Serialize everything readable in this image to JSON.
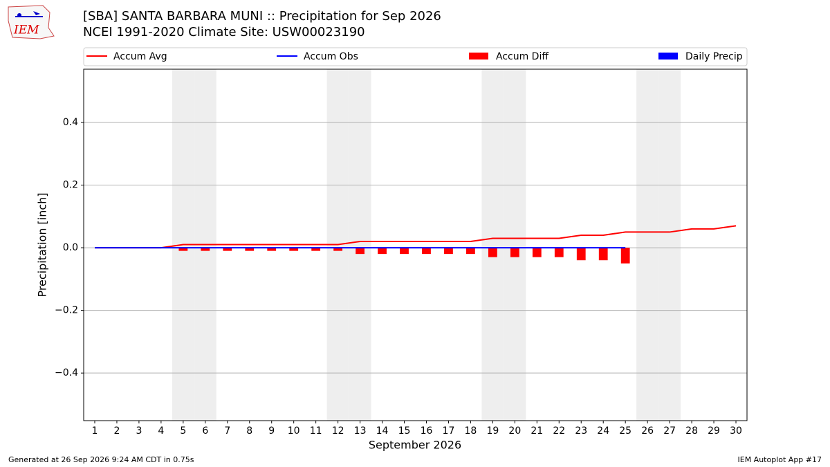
{
  "logo_text": "IEM",
  "footer_left": "Generated at 26 Sep 2026 9:24 AM CDT in 0.75s",
  "footer_right": "IEM Autoplot App #17",
  "chart_data": {
    "type": "line",
    "title": "[SBA] SANTA BARBARA MUNI :: Precipitation for Sep 2026",
    "subtitle": "NCEI 1991-2020 Climate Site: USW00023190",
    "x_label": "September 2026",
    "y_label": "Precipitation [inch]",
    "x": [
      1,
      2,
      3,
      4,
      5,
      6,
      7,
      8,
      9,
      10,
      11,
      12,
      13,
      14,
      15,
      16,
      17,
      18,
      19,
      20,
      21,
      22,
      23,
      24,
      25,
      26,
      27,
      28,
      29,
      30
    ],
    "xlim": [
      0.5,
      30.5
    ],
    "xticks": [
      1,
      2,
      3,
      4,
      5,
      6,
      7,
      8,
      9,
      10,
      11,
      12,
      13,
      14,
      15,
      16,
      17,
      18,
      19,
      20,
      21,
      22,
      23,
      24,
      25,
      26,
      27,
      28,
      29,
      30
    ],
    "ylim": [
      -0.552,
      0.57
    ],
    "yticks": [
      {
        "value": -0.4,
        "label": "−0.4"
      },
      {
        "value": -0.2,
        "label": "−0.2"
      },
      {
        "value": 0,
        "label": "0.0"
      },
      0.2,
      0.4
    ],
    "grid": true,
    "shaded_days": [
      5,
      6,
      12,
      13,
      19,
      20,
      26,
      27
    ],
    "series": [
      {
        "name": "Accum Avg",
        "kind": "line",
        "color": "#ff0000",
        "values": [
          0,
          0,
          0,
          0,
          0.01,
          0.01,
          0.01,
          0.01,
          0.01,
          0.01,
          0.01,
          0.01,
          0.02,
          0.02,
          0.02,
          0.02,
          0.02,
          0.02,
          0.03,
          0.03,
          0.03,
          0.03,
          0.04,
          0.04,
          0.05,
          0.05,
          0.05,
          0.06,
          0.06,
          0.07
        ]
      },
      {
        "name": "Accum Obs",
        "kind": "line",
        "color": "#0000ff",
        "values": [
          0,
          0,
          0,
          0,
          0,
          0,
          0,
          0,
          0,
          0,
          0,
          0,
          0,
          0,
          0,
          0,
          0,
          0,
          0,
          0,
          0,
          0,
          0,
          0,
          0,
          null,
          null,
          null,
          null,
          null
        ]
      },
      {
        "name": "Accum Diff",
        "kind": "bar",
        "color": "#ff0000",
        "values": [
          0,
          0,
          0,
          0,
          -0.01,
          -0.01,
          -0.01,
          -0.01,
          -0.01,
          -0.01,
          -0.01,
          -0.01,
          -0.02,
          -0.02,
          -0.02,
          -0.02,
          -0.02,
          -0.02,
          -0.03,
          -0.03,
          -0.03,
          -0.03,
          -0.04,
          -0.04,
          -0.05,
          null,
          null,
          null,
          null,
          null
        ]
      },
      {
        "name": "Daily Precip",
        "kind": "bar",
        "color": "#0000ff",
        "values": [
          0,
          0,
          0,
          0,
          0,
          0,
          0,
          0,
          0,
          0,
          0,
          0,
          0,
          0,
          0,
          0,
          0,
          0,
          0,
          0,
          0,
          0,
          0,
          0,
          0,
          null,
          null,
          null,
          null,
          null
        ]
      }
    ]
  }
}
